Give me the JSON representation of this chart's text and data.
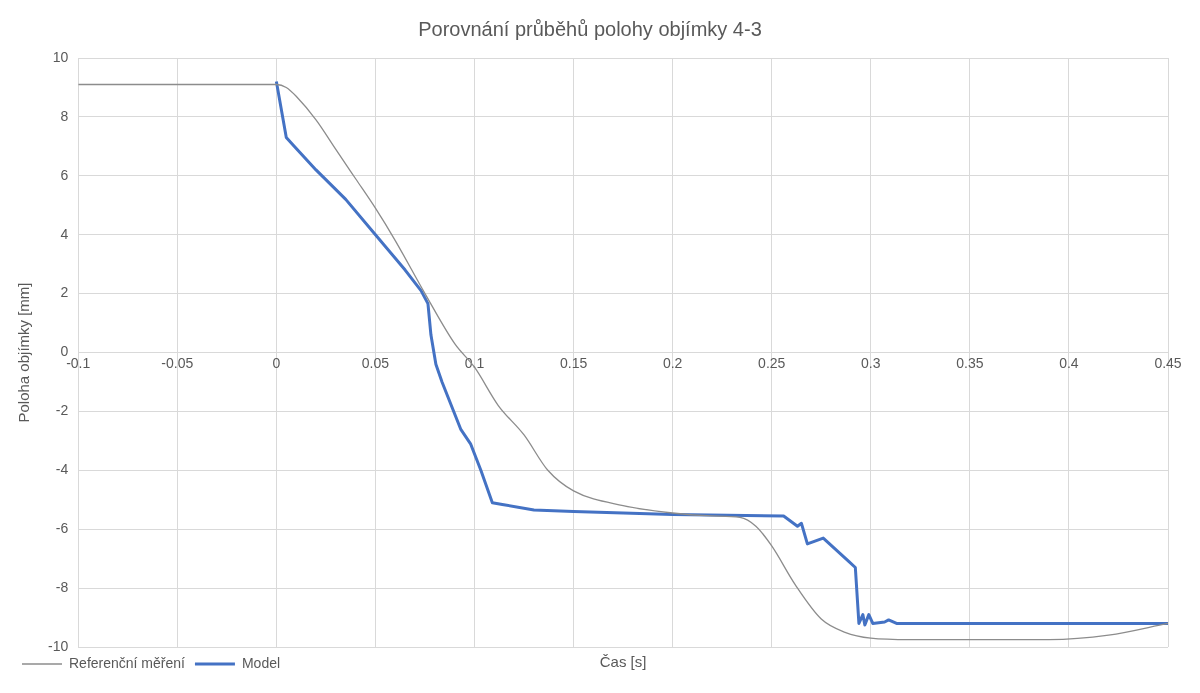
{
  "chart_data": {
    "type": "line",
    "title": "Porovnání průběhů polohy objímky 4-3",
    "xlabel": "Čas [s]",
    "ylabel": "Poloha objímky [mm]",
    "xlim": [
      -0.1,
      0.45
    ],
    "xticks": [
      -0.1,
      -0.05,
      0,
      0.05,
      0.1,
      0.15,
      0.2,
      0.25,
      0.3,
      0.35,
      0.4,
      0.45
    ],
    "ylim": [
      -10,
      10
    ],
    "yticks": [
      -10,
      -8,
      -6,
      -4,
      -2,
      0,
      2,
      4,
      6,
      8,
      10
    ],
    "grid": true,
    "legend": "bottom left",
    "marker": "none",
    "line_style": "solid",
    "series": [
      {
        "name": "Referenční měření",
        "color": "#8c8c8c",
        "x": [
          -0.1,
          0,
          0.005,
          0.01,
          0.02,
          0.03,
          0.04,
          0.05,
          0.06,
          0.075,
          0.09,
          0.1,
          0.112,
          0.125,
          0.137,
          0.15,
          0.175,
          0.2,
          0.22,
          0.234,
          0.242,
          0.25,
          0.262,
          0.275,
          0.287,
          0.3,
          0.32,
          0.39,
          0.42,
          0.45
        ],
        "values": [
          9.1,
          9.1,
          9.0,
          8.7,
          7.9,
          6.9,
          5.9,
          4.9,
          3.8,
          2.0,
          0.3,
          -0.5,
          -1.8,
          -2.8,
          -4.0,
          -4.7,
          -5.2,
          -5.45,
          -5.55,
          -5.6,
          -5.9,
          -6.57,
          -7.9,
          -9.05,
          -9.5,
          -9.7,
          -9.75,
          -9.75,
          -9.6,
          -9.2
        ]
      },
      {
        "name": "Model",
        "color": "#4472c4",
        "x": [
          0,
          0.005,
          0.009,
          0.02,
          0.035,
          0.05,
          0.065,
          0.073,
          0.0765,
          0.078,
          0.0805,
          0.0836,
          0.0877,
          0.093,
          0.098,
          0.1032,
          0.109,
          0.114,
          0.13,
          0.15,
          0.2,
          0.256,
          0.263,
          0.265,
          0.268,
          0.276,
          0.289,
          0.2922,
          0.294,
          0.296,
          0.297,
          0.299,
          0.301,
          0.307,
          0.309,
          0.313,
          0.35,
          0.45
        ],
        "values": [
          9.2,
          7.3,
          7.0,
          6.2,
          5.2,
          4.0,
          2.8,
          2.1,
          1.66,
          0.6,
          -0.4,
          -1.0,
          -1.7,
          -2.6,
          -3.1,
          -4.0,
          -5.1,
          -5.16,
          -5.35,
          -5.4,
          -5.5,
          -5.55,
          -5.9,
          -5.8,
          -6.5,
          -6.3,
          -7.1,
          -7.3,
          -9.2,
          -8.9,
          -9.25,
          -8.9,
          -9.2,
          -9.15,
          -9.08,
          -9.2,
          -9.2,
          -9.2
        ]
      }
    ]
  }
}
